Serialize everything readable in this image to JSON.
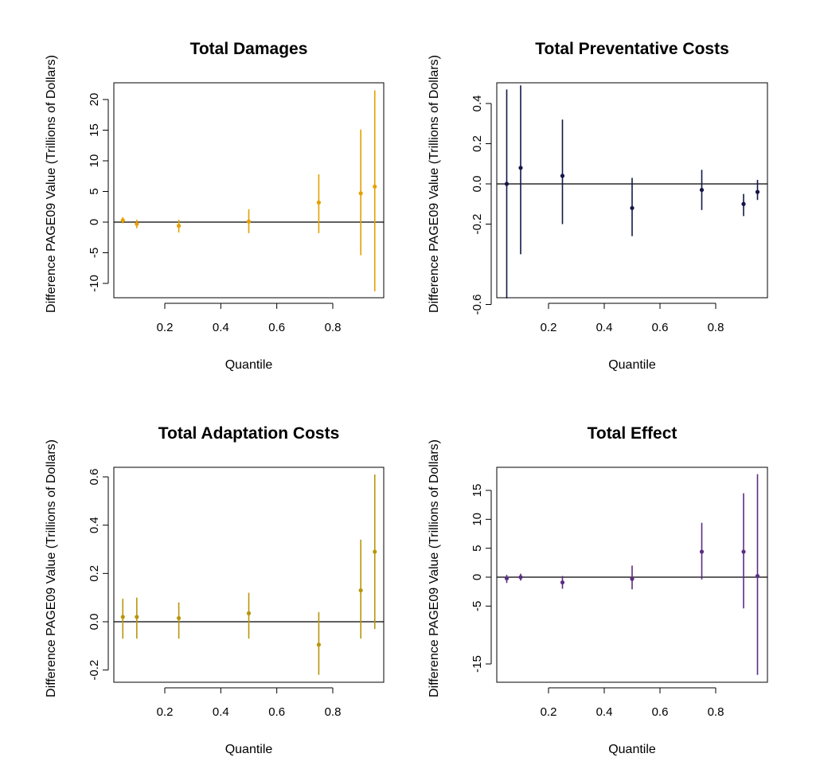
{
  "chart_data": [
    {
      "type": "scatter",
      "title": "Total Damages",
      "xlabel": "Quantile",
      "ylabel": "Difference PAGE09 Value (Trillions of Dollars)",
      "xlim": [
        0.05,
        0.95
      ],
      "ylim": [
        -11.3,
        21.5
      ],
      "xticks": [
        "0.2",
        "0.4",
        "0.6",
        "0.8"
      ],
      "yticks": [
        "-10",
        "-5",
        "0",
        "5",
        "10",
        "15",
        "20"
      ],
      "color": "#e69f00",
      "reference_line_y": 0,
      "series": [
        {
          "x": [
            0.05,
            0.1,
            0.25,
            0.5,
            0.75,
            0.9,
            0.95
          ],
          "y": [
            0.3,
            -0.3,
            -0.6,
            0.1,
            3.2,
            4.7,
            5.8
          ],
          "lower": [
            -0.2,
            -1.0,
            -1.7,
            -1.8,
            -1.8,
            -5.4,
            -11.3
          ],
          "upper": [
            0.8,
            0.4,
            0.4,
            2.1,
            7.8,
            15.1,
            21.5
          ]
        }
      ]
    },
    {
      "type": "scatter",
      "title": "Total Preventative Costs",
      "xlabel": "Quantile",
      "ylabel": "Difference PAGE09 Value (Trillions of Dollars)",
      "xlim": [
        0.05,
        0.95
      ],
      "ylim": [
        -0.57,
        0.49
      ],
      "xticks": [
        "0.2",
        "0.4",
        "0.6",
        "0.8"
      ],
      "yticks": [
        "-0.6",
        "-0.2",
        "0.0",
        "0.2",
        "0.4"
      ],
      "color": "#131747",
      "reference_line_y": 0,
      "series": [
        {
          "x": [
            0.05,
            0.1,
            0.25,
            0.5,
            0.75,
            0.9,
            0.95
          ],
          "y": [
            0.0,
            0.08,
            0.04,
            -0.12,
            -0.03,
            -0.1,
            -0.04
          ],
          "lower": [
            -0.57,
            -0.35,
            -0.2,
            -0.26,
            -0.13,
            -0.16,
            -0.08
          ],
          "upper": [
            0.47,
            0.49,
            0.32,
            0.03,
            0.07,
            -0.05,
            0.02
          ]
        }
      ]
    },
    {
      "type": "scatter",
      "title": "Total Adaptation Costs",
      "xlabel": "Quantile",
      "ylabel": "Difference PAGE09 Value (Trillions of Dollars)",
      "xlim": [
        0.05,
        0.95
      ],
      "ylim": [
        -0.22,
        0.61
      ],
      "xticks": [
        "0.2",
        "0.4",
        "0.6",
        "0.8"
      ],
      "yticks": [
        "-0.2",
        "0.0",
        "0.2",
        "0.4",
        "0.6"
      ],
      "color": "#b8960c",
      "reference_line_y": 0,
      "series": [
        {
          "x": [
            0.05,
            0.1,
            0.25,
            0.5,
            0.75,
            0.9,
            0.95
          ],
          "y": [
            0.02,
            0.02,
            0.015,
            0.035,
            -0.095,
            0.13,
            0.29
          ],
          "lower": [
            -0.07,
            -0.07,
            -0.07,
            -0.07,
            -0.22,
            -0.07,
            -0.03
          ],
          "upper": [
            0.095,
            0.1,
            0.08,
            0.12,
            0.04,
            0.34,
            0.61
          ]
        }
      ]
    },
    {
      "type": "scatter",
      "title": "Total Effect",
      "xlabel": "Quantile",
      "ylabel": "Difference PAGE09 Value (Trillions of Dollars)",
      "xlim": [
        0.05,
        0.95
      ],
      "ylim": [
        -16.9,
        17.8
      ],
      "xticks": [
        "0.2",
        "0.4",
        "0.6",
        "0.8"
      ],
      "yticks": [
        "-15",
        "-5",
        "0",
        "5",
        "10",
        "15"
      ],
      "color": "#5b2d82",
      "reference_line_y": 0,
      "series": [
        {
          "x": [
            0.05,
            0.1,
            0.25,
            0.5,
            0.75,
            0.9,
            0.95
          ],
          "y": [
            -0.2,
            0.0,
            -0.9,
            -0.3,
            4.4,
            4.4,
            0.2
          ],
          "lower": [
            -1.0,
            -0.6,
            -2.0,
            -2.1,
            -0.4,
            -5.4,
            -16.9
          ],
          "upper": [
            0.4,
            0.6,
            0.2,
            2.0,
            9.4,
            14.5,
            17.8
          ]
        }
      ]
    }
  ]
}
